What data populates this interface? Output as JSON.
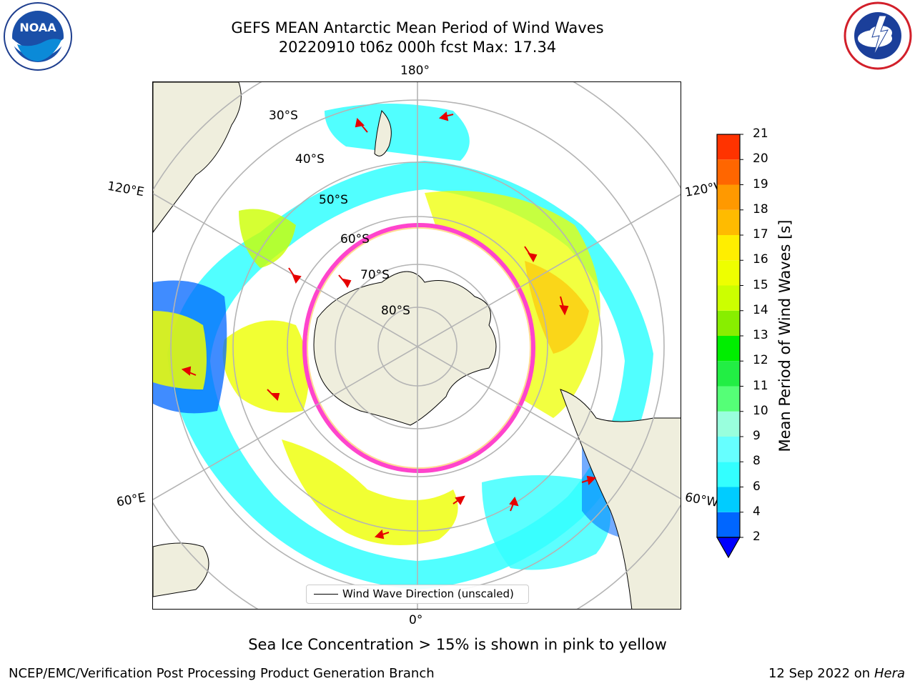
{
  "title": {
    "line1": "GEFS MEAN Antarctic Mean Period of Wind Waves",
    "line2": "20220910 t06z 000h fcst   Max: 17.34"
  },
  "map": {
    "projection": "south polar stereographic",
    "lon_labels": [
      "180°",
      "120°E",
      "120°W",
      "60°E",
      "60°W",
      "0°"
    ],
    "lat_labels": [
      "30°S",
      "40°S",
      "50°S",
      "60°S",
      "70°S",
      "80°S"
    ],
    "legend_label": "Wind Wave Direction (unscaled)",
    "colors": {
      "land": "#efeedd",
      "ice_edge": "#ff44cc",
      "arrow": "#e60000",
      "graticule": "#b4b4b4"
    }
  },
  "colorbar": {
    "label": "Mean Period of Wind Waves [s]",
    "ticks": [
      "2",
      "4",
      "6",
      "8",
      "9",
      "10",
      "11",
      "12",
      "13",
      "14",
      "15",
      "16",
      "17",
      "18",
      "19",
      "20",
      "21"
    ],
    "colors": [
      "#0066ff",
      "#00ccff",
      "#33ffff",
      "#66ffff",
      "#99ffdd",
      "#55ff77",
      "#22ee44",
      "#00ee00",
      "#88ee00",
      "#ccff00",
      "#eeff00",
      "#ffee00",
      "#ffbb00",
      "#ff9900",
      "#ff6600",
      "#ff3300",
      "#ff0000"
    ],
    "extend_color": "#0000ff"
  },
  "note": "Sea Ice Concentration > 15% is shown in pink to yellow",
  "footer": {
    "left": "NCEP/EMC/Verification Post Processing Product Generation Branch",
    "right_date": "12 Sep 2022 on",
    "right_machine": "Hera"
  }
}
